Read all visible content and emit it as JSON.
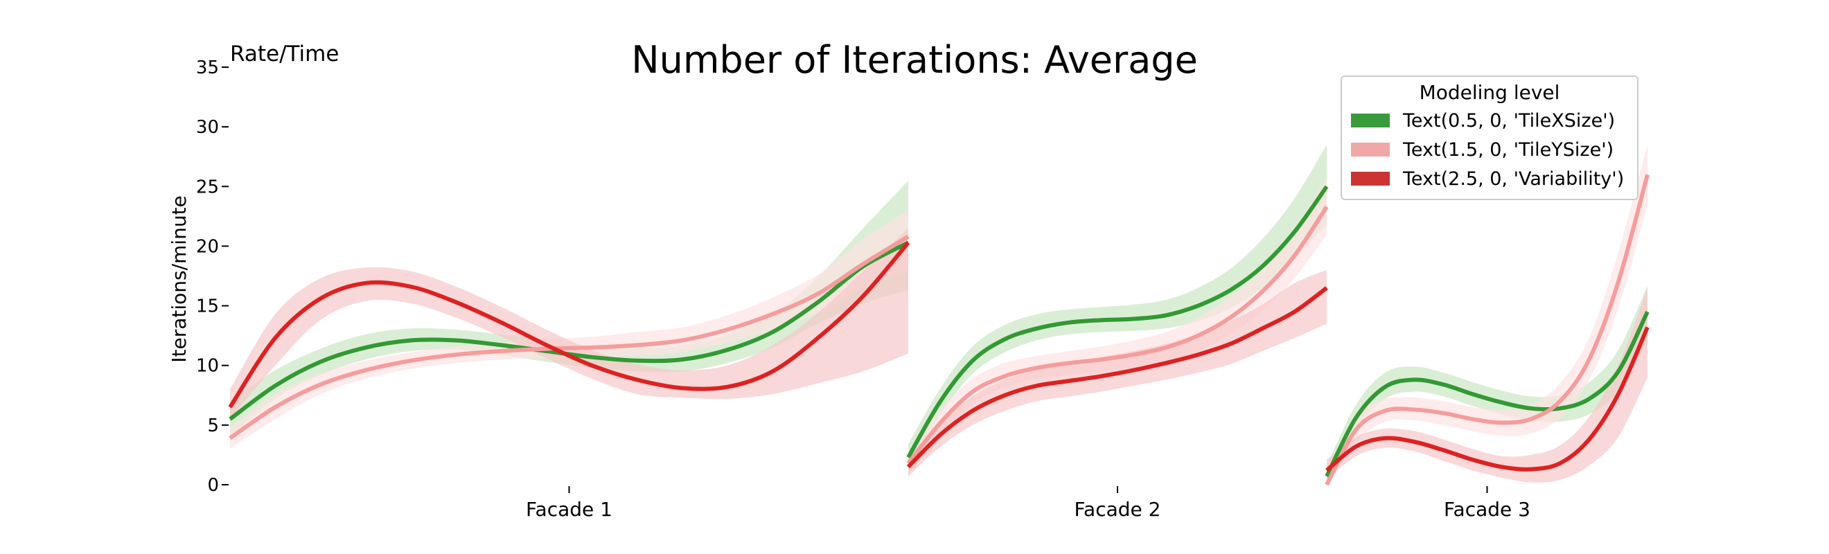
{
  "chart_data": {
    "type": "line",
    "title": "Number of Iterations: Average",
    "corner_label": "Rate/Time",
    "ylabel": "Iterations/minute",
    "xlabel": "",
    "ylim": [
      0,
      35
    ],
    "yticks": [
      0,
      5,
      10,
      15,
      20,
      25,
      30,
      35
    ],
    "categories": [
      "Facade 1",
      "Facade 2",
      "Facade 3"
    ],
    "grid": false,
    "legend": {
      "title": "Modeling level",
      "placement": "top-right",
      "entries": [
        {
          "label": "Text(0.5, 0, 'TileXSize')",
          "color": "#3a9a3a"
        },
        {
          "label": "Text(1.5, 0, 'TileYSize')",
          "color": "#f2a7a7"
        },
        {
          "label": "Text(2.5, 0, 'Variability')",
          "color": "#cc3333"
        }
      ]
    },
    "series_colors": {
      "TileXSize": {
        "line": "#339933",
        "band": "#cde8c8"
      },
      "TileYSize": {
        "line": "#f59c9c",
        "band": "#fde3e3"
      },
      "Variability": {
        "line": "#dd2222",
        "band": "#f7c7c9"
      }
    },
    "panels": [
      {
        "category": "Facade 1",
        "series": [
          {
            "key": "TileXSize",
            "values": [
              5.5,
              8.3,
              10.3,
              11.5,
              12.1,
              12.1,
              11.7,
              11.2,
              10.7,
              10.4,
              10.5,
              11.3,
              12.8,
              15.3,
              18.3,
              20.3
            ],
            "band": [
              [
                4.0,
                7.0
              ],
              [
                7.2,
                9.6
              ],
              [
                9.2,
                11.4
              ],
              [
                10.5,
                12.6
              ],
              [
                11.2,
                13.1
              ],
              [
                11.3,
                13.0
              ],
              [
                10.9,
                12.6
              ],
              [
                10.3,
                12.2
              ],
              [
                9.8,
                11.6
              ],
              [
                9.5,
                11.4
              ],
              [
                9.5,
                11.7
              ],
              [
                10.2,
                12.6
              ],
              [
                11.5,
                14.3
              ],
              [
                13.5,
                17.4
              ],
              [
                15.2,
                21.5
              ],
              [
                16.3,
                25.5
              ]
            ]
          },
          {
            "key": "TileYSize",
            "values": [
              3.9,
              6.5,
              8.4,
              9.6,
              10.4,
              10.9,
              11.2,
              11.4,
              11.5,
              11.7,
              12.1,
              13.0,
              14.3,
              16.0,
              18.5,
              20.8
            ],
            "band": [
              [
                3.0,
                4.8
              ],
              [
                5.5,
                7.6
              ],
              [
                7.6,
                9.3
              ],
              [
                8.9,
                10.4
              ],
              [
                9.7,
                11.1
              ],
              [
                10.2,
                11.6
              ],
              [
                10.5,
                11.9
              ],
              [
                10.6,
                12.2
              ],
              [
                10.6,
                12.4
              ],
              [
                10.8,
                12.8
              ],
              [
                11.1,
                13.2
              ],
              [
                11.9,
                14.2
              ],
              [
                13.0,
                15.7
              ],
              [
                14.4,
                17.6
              ],
              [
                16.5,
                20.6
              ],
              [
                18.0,
                23.0
              ]
            ]
          },
          {
            "key": "Variability",
            "values": [
              6.5,
              12.3,
              15.6,
              16.9,
              16.6,
              15.3,
              13.6,
              11.7,
              10.0,
              8.8,
              8.1,
              8.2,
              9.5,
              12.3,
              15.8,
              20.3
            ],
            "band": [
              [
                5.5,
                8.0
              ],
              [
                10.0,
                14.3
              ],
              [
                13.8,
                17.3
              ],
              [
                15.4,
                18.2
              ],
              [
                15.2,
                17.9
              ],
              [
                14.0,
                16.6
              ],
              [
                12.4,
                14.9
              ],
              [
                10.6,
                13.0
              ],
              [
                8.9,
                11.3
              ],
              [
                7.6,
                10.1
              ],
              [
                7.3,
                9.6
              ],
              [
                7.2,
                10.0
              ],
              [
                7.6,
                11.7
              ],
              [
                8.5,
                14.4
              ],
              [
                9.5,
                17.9
              ],
              [
                11.0,
                21.5
              ]
            ]
          }
        ]
      },
      {
        "category": "Facade 2",
        "series": [
          {
            "key": "TileXSize",
            "values": [
              2.3,
              7.0,
              10.4,
              12.2,
              13.1,
              13.6,
              13.8,
              13.9,
              14.2,
              15.0,
              16.3,
              18.3,
              21.2,
              25.0
            ],
            "band": [
              [
                1.5,
                3.4
              ],
              [
                5.9,
                8.1
              ],
              [
                9.3,
                11.6
              ],
              [
                11.1,
                13.4
              ],
              [
                12.1,
                14.3
              ],
              [
                12.6,
                14.7
              ],
              [
                12.8,
                14.9
              ],
              [
                12.9,
                15.1
              ],
              [
                13.1,
                15.5
              ],
              [
                13.7,
                16.5
              ],
              [
                14.8,
                18.1
              ],
              [
                16.5,
                20.6
              ],
              [
                19.0,
                24.0
              ],
              [
                21.8,
                28.5
              ]
            ]
          },
          {
            "key": "TileYSize",
            "values": [
              1.8,
              5.2,
              7.8,
              9.1,
              9.8,
              10.2,
              10.5,
              10.9,
              11.5,
              12.5,
              14.0,
              16.2,
              19.2,
              23.3
            ],
            "band": [
              [
                0.8,
                2.8
              ],
              [
                4.3,
                6.3
              ],
              [
                6.8,
                8.9
              ],
              [
                8.2,
                10.2
              ],
              [
                8.9,
                10.8
              ],
              [
                9.2,
                11.2
              ],
              [
                9.5,
                11.6
              ],
              [
                9.8,
                12.1
              ],
              [
                10.3,
                12.8
              ],
              [
                11.2,
                14.0
              ],
              [
                12.6,
                15.8
              ],
              [
                14.6,
                18.1
              ],
              [
                17.3,
                21.4
              ],
              [
                21.0,
                25.7
              ]
            ]
          },
          {
            "key": "Variability",
            "values": [
              1.5,
              4.2,
              6.2,
              7.5,
              8.3,
              8.7,
              9.1,
              9.6,
              10.2,
              10.9,
              11.8,
              13.1,
              14.5,
              16.5
            ],
            "band": [
              [
                0.7,
                2.3
              ],
              [
                3.2,
                5.2
              ],
              [
                5.0,
                7.4
              ],
              [
                6.2,
                8.8
              ],
              [
                7.0,
                9.7
              ],
              [
                7.4,
                10.2
              ],
              [
                7.8,
                10.7
              ],
              [
                8.3,
                11.2
              ],
              [
                8.8,
                11.8
              ],
              [
                9.4,
                12.6
              ],
              [
                10.1,
                13.7
              ],
              [
                11.2,
                15.1
              ],
              [
                12.3,
                16.9
              ],
              [
                13.5,
                18.0
              ]
            ]
          }
        ]
      },
      {
        "category": "Facade 3",
        "series": [
          {
            "key": "TileXSize",
            "values": [
              0.7,
              5.6,
              8.2,
              8.8,
              8.4,
              7.6,
              6.9,
              6.4,
              6.4,
              7.2,
              9.5,
              14.5
            ],
            "band": [
              [
                0.0,
                1.6
              ],
              [
                4.6,
                6.7
              ],
              [
                7.2,
                9.4
              ],
              [
                7.8,
                9.9
              ],
              [
                7.4,
                9.4
              ],
              [
                6.6,
                8.6
              ],
              [
                5.9,
                7.9
              ],
              [
                5.4,
                7.4
              ],
              [
                5.3,
                7.5
              ],
              [
                5.9,
                8.6
              ],
              [
                7.8,
                11.3
              ],
              [
                12.0,
                16.7
              ]
            ]
          },
          {
            "key": "TileYSize",
            "values": [
              0.0,
              4.6,
              6.2,
              6.3,
              6.0,
              5.5,
              5.2,
              5.5,
              7.0,
              10.5,
              17.0,
              26.0
            ],
            "band": [
              [
                0.0,
                1.0
              ],
              [
                3.6,
                5.8
              ],
              [
                5.3,
                7.2
              ],
              [
                5.4,
                7.3
              ],
              [
                5.0,
                7.0
              ],
              [
                4.5,
                6.5
              ],
              [
                4.1,
                6.3
              ],
              [
                4.3,
                6.7
              ],
              [
                5.6,
                8.5
              ],
              [
                8.8,
                12.3
              ],
              [
                14.8,
                19.5
              ],
              [
                23.5,
                28.5
              ]
            ]
          },
          {
            "key": "Variability",
            "values": [
              1.2,
              3.2,
              3.9,
              3.6,
              2.9,
              2.1,
              1.5,
              1.3,
              1.8,
              3.8,
              7.6,
              13.2
            ],
            "band": [
              [
                0.4,
                2.1
              ],
              [
                2.4,
                4.0
              ],
              [
                3.1,
                4.7
              ],
              [
                2.8,
                4.5
              ],
              [
                2.0,
                3.8
              ],
              [
                1.2,
                3.0
              ],
              [
                0.6,
                2.4
              ],
              [
                0.2,
                2.5
              ],
              [
                0.4,
                3.3
              ],
              [
                1.6,
                5.7
              ],
              [
                4.0,
                10.0
              ],
              [
                9.0,
                16.5
              ]
            ]
          }
        ]
      }
    ]
  }
}
